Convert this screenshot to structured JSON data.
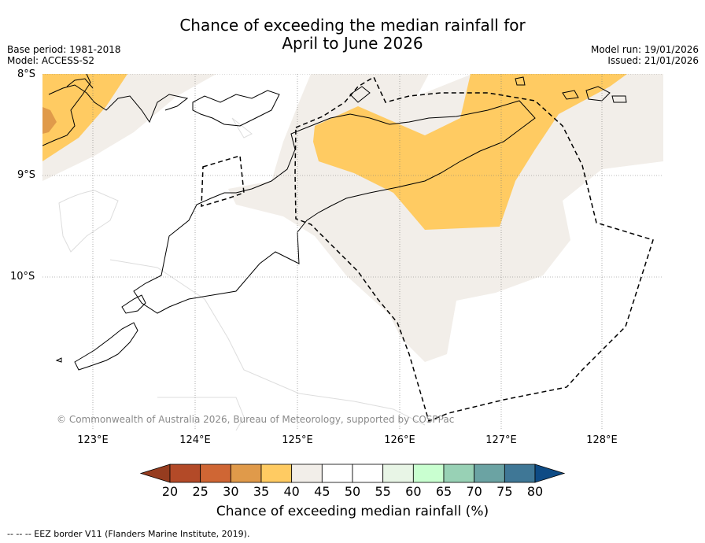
{
  "title_line1": "Chance of exceeding the median rainfall for",
  "title_line2": "April to June 2026",
  "base_period": "Base period: 1981-2018",
  "model": "Model: ACCESS-S2",
  "model_run": "Model run: 19/01/2026",
  "issued": "Issued: 21/01/2026",
  "lat_labels": [
    "8°S",
    "9°S",
    "10°S"
  ],
  "lon_labels": [
    "123°E",
    "124°E",
    "125°E",
    "126°E",
    "127°E",
    "128°E"
  ],
  "copyright": "© Commonwealth of Australia 2026, Bureau of Meteorology, supported by COSPPac",
  "colorbar": {
    "ticks": [
      "20",
      "25",
      "30",
      "35",
      "40",
      "45",
      "50",
      "55",
      "60",
      "65",
      "70",
      "75",
      "80"
    ],
    "colors": [
      "#b34a28",
      "#cf6634",
      "#e09a4a",
      "#ffcb62",
      "#f2eee9",
      "#ffffff",
      "#ffffff",
      "#e8f5e6",
      "#c9ffd0",
      "#98d1b5",
      "#6ba3a3",
      "#3f7796"
    ],
    "low_color": "#963c1f",
    "high_color": "#0e4b85",
    "label": "Chance of exceeding median rainfall (%)"
  },
  "legend_footer": "--  --  -- EEZ border V11 (Flanders Marine Institute, 2019).",
  "colors": {
    "orange": "#ffcb62",
    "dark_orange": "#e09a4a",
    "neutral": "#f2eee9"
  }
}
